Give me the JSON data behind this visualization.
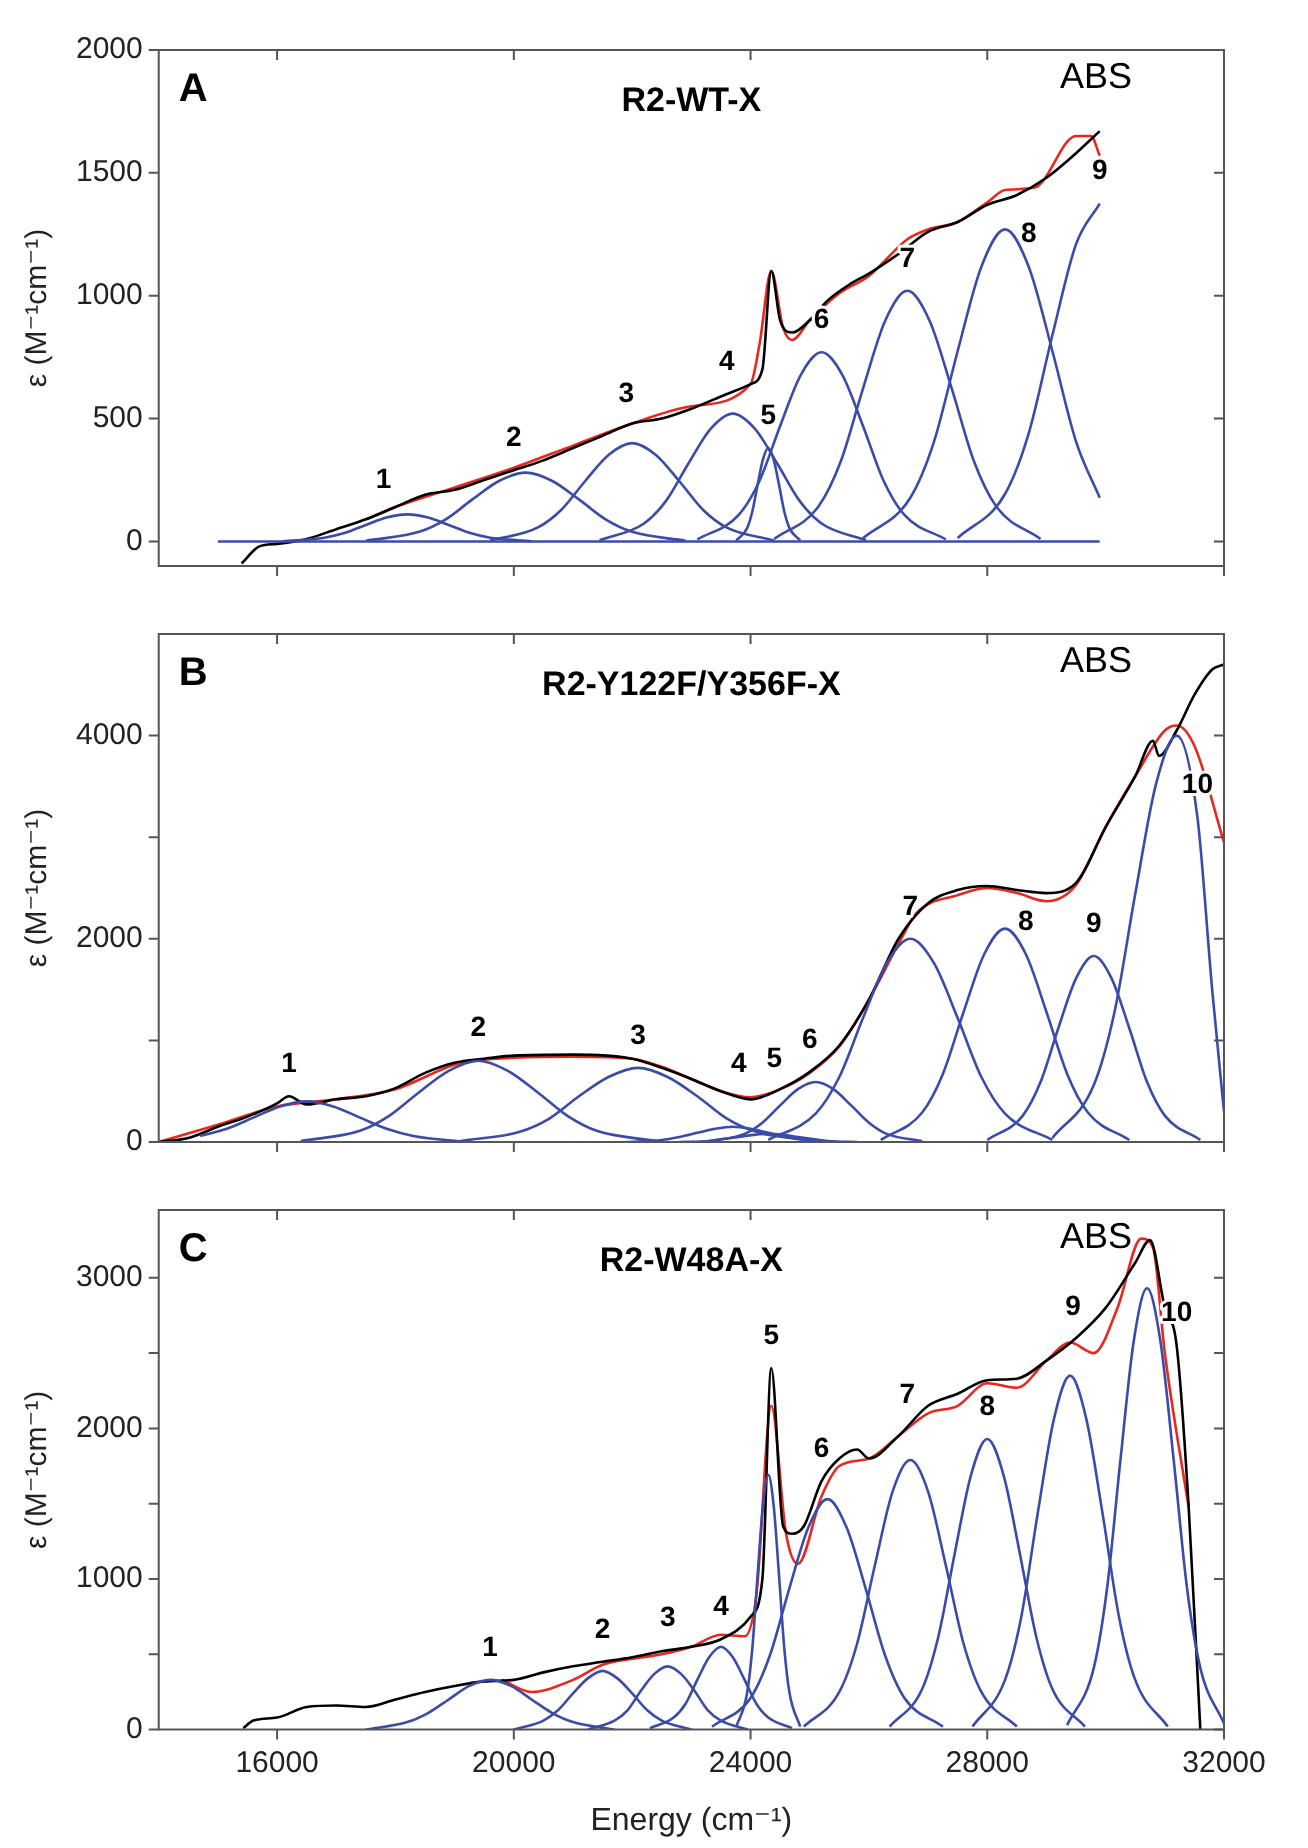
{
  "chart_data": [
    {
      "type": "line",
      "title": "R2-WT-X",
      "ylabel": "ε (M⁻¹cm⁻¹)",
      "annotations": [
        "A",
        "ABS",
        {
          "text": "1",
          "x": 17800,
          "y": 120
        },
        {
          "text": "2",
          "x": 20000,
          "y": 290
        },
        {
          "text": "3",
          "x": 21900,
          "y": 470
        },
        {
          "text": "4",
          "x": 23600,
          "y": 600
        },
        {
          "text": "5",
          "x": 24300,
          "y": 380
        },
        {
          "text": "6",
          "x": 25200,
          "y": 770
        },
        {
          "text": "7",
          "x": 26650,
          "y": 1020
        },
        {
          "text": "8",
          "x": 28700,
          "y": 1118
        },
        {
          "text": "9",
          "x": 29900,
          "y": 1375
        }
      ],
      "xlim": [
        14000,
        32000
      ],
      "xticks": [
        16000,
        20000,
        24000,
        28000,
        32000
      ],
      "ylim": [
        -100,
        2000
      ],
      "yticks": [
        0,
        500,
        1000,
        1500,
        2000
      ],
      "tick_labels": "y",
      "grid": false,
      "legend": false,
      "marker": "none",
      "line_style": "solid",
      "series": [
        {
          "color": "#3a4ba8",
          "x": [
            15000,
            29900
          ],
          "values": [
            0,
            0
          ]
        },
        {
          "color": "#3a4ba8",
          "x": [
            16100,
            16800,
            17150,
            17500,
            17850,
            18200,
            18550,
            18900,
            19250,
            19600,
            20300
          ],
          "values": [
            1,
            15,
            35,
            67,
            97,
            110,
            97,
            67,
            35,
            15,
            1
          ]
        },
        {
          "color": "#3a4ba8",
          "x": [
            17500,
            18400,
            18850,
            19300,
            19750,
            20200,
            20650,
            21100,
            21550,
            22000,
            22900
          ],
          "values": [
            3,
            39,
            90,
            171,
            246,
            280,
            246,
            171,
            90,
            39,
            3
          ]
        },
        {
          "color": "#3a4ba8",
          "x": [
            19600,
            20400,
            20800,
            21200,
            21600,
            22000,
            22400,
            22800,
            23200,
            23600,
            24400
          ],
          "values": [
            4,
            56,
            128,
            244,
            352,
            400,
            352,
            244,
            128,
            56,
            4
          ]
        },
        {
          "color": "#3a4ba8",
          "x": [
            21450,
            22200,
            22575,
            22950,
            23325,
            23700,
            24075,
            24450,
            24825,
            25200,
            25950
          ],
          "values": [
            5,
            73,
            166,
            317,
            458,
            520,
            458,
            317,
            166,
            73,
            5
          ]
        },
        {
          "color": "#3a4ba8",
          "x": [
            23760,
            23940,
            24030,
            24120,
            24210,
            24300,
            24390,
            24480,
            24570,
            24660,
            24840
          ],
          "values": [
            4,
            53,
            122,
            232,
            334,
            380,
            334,
            232,
            122,
            53,
            4
          ]
        },
        {
          "color": "#3a4ba8",
          "x": [
            23100,
            23800,
            24150,
            24500,
            24850,
            25200,
            25550,
            25900,
            26250,
            26600,
            27300
          ],
          "values": [
            8,
            108,
            246,
            470,
            678,
            770,
            678,
            470,
            246,
            108,
            8
          ]
        },
        {
          "color": "#3a4ba8",
          "x": [
            24400,
            25150,
            25525,
            25900,
            26275,
            26650,
            27025,
            27400,
            27775,
            28150,
            28900
          ],
          "values": [
            10,
            143,
            326,
            622,
            898,
            1020,
            898,
            622,
            326,
            143,
            10
          ]
        },
        {
          "color": "#3a4ba8",
          "x": [
            25900,
            26700,
            27100,
            27500,
            27900,
            28300,
            28700,
            29100,
            29500,
            29900
          ],
          "values": [
            13,
            178,
            406,
            775,
            1118,
            1270,
            1118,
            775,
            406,
            178
          ]
        },
        {
          "color": "#3a4ba8",
          "x": [
            27500,
            28300,
            28700,
            29100,
            29500,
            29900
          ],
          "values": [
            14,
            193,
            440,
            839,
            1210,
            1375
          ]
        },
        {
          "color": "#000000",
          "x": [
            15400,
            15700,
            16000,
            16500,
            17000,
            17500,
            18000,
            18500,
            19000,
            19500,
            20000,
            20500,
            21000,
            21500,
            22000,
            22500,
            23000,
            23500,
            24000,
            24200,
            24350,
            24500,
            24700,
            25000,
            25300,
            25700,
            26000,
            26500,
            27000,
            27500,
            28000,
            28500,
            29000,
            29500,
            29900
          ],
          "values": [
            -90,
            -20,
            -10,
            10,
            50,
            90,
            140,
            190,
            210,
            250,
            290,
            330,
            380,
            430,
            480,
            500,
            540,
            590,
            640,
            700,
            1100,
            900,
            850,
            900,
            980,
            1050,
            1090,
            1170,
            1260,
            1300,
            1370,
            1410,
            1480,
            1580,
            1670
          ]
        },
        {
          "color": "#e8281e",
          "x": [
            17500,
            18000,
            19000,
            20000,
            21000,
            22000,
            23000,
            24000,
            24150,
            24350,
            24550,
            24700,
            25000,
            25500,
            26000,
            26650,
            27000,
            27500,
            28000,
            28300,
            28800,
            29500,
            29750,
            29900
          ],
          "values": [
            90,
            140,
            220,
            300,
            390,
            480,
            550,
            640,
            800,
            1100,
            870,
            820,
            900,
            1010,
            1080,
            1230,
            1270,
            1300,
            1380,
            1430,
            1440,
            1650,
            1650,
            1570
          ]
        }
      ]
    },
    {
      "type": "line",
      "title": "R2-Y122F/Y356F-X",
      "ylabel": "ε (M⁻¹cm⁻¹)",
      "annotations": [
        "B",
        "ABS",
        {
          "text": "1",
          "x": 16200,
          "y": 450
        },
        {
          "text": "2",
          "x": 19400,
          "y": 800
        },
        {
          "text": "3",
          "x": 22100,
          "y": 730
        },
        {
          "text": "4",
          "x": 23800,
          "y": 450
        },
        {
          "text": "5",
          "x": 24400,
          "y": 500
        },
        {
          "text": "6",
          "x": 25000,
          "y": 690
        },
        {
          "text": "7",
          "x": 26700,
          "y": 2000
        },
        {
          "text": "8",
          "x": 28650,
          "y": 1850
        },
        {
          "text": "9",
          "x": 29800,
          "y": 1830
        },
        {
          "text": "10",
          "x": 31550,
          "y": 3200
        }
      ],
      "xlim": [
        14000,
        32000
      ],
      "xticks": [
        16000,
        20000,
        24000,
        28000,
        32000
      ],
      "ylim": [
        0,
        5000
      ],
      "yticks": [
        0,
        {
          "value": 1000,
          "label": null
        },
        2000,
        {
          "value": 3000,
          "label": null
        },
        4000
      ],
      "tick_labels": "y",
      "grid": false,
      "legend": false,
      "marker": "none",
      "line_style": "solid",
      "series": [
        {
          "color": "#3a4ba8",
          "x": [
            14700,
            15150,
            15600,
            16050,
            16500,
            16950,
            17400,
            17850,
            18300,
            19200
          ],
          "values": [
            60,
            130,
            240,
            350,
            400,
            350,
            240,
            130,
            60,
            0
          ]
        },
        {
          "color": "#3a4ba8",
          "x": [
            16400,
            17400,
            17900,
            18400,
            18900,
            19400,
            19900,
            20400,
            20900,
            21400,
            22400
          ],
          "values": [
            10,
            110,
            260,
            490,
            700,
            800,
            700,
            490,
            260,
            110,
            10
          ]
        },
        {
          "color": "#3a4ba8",
          "x": [
            19100,
            20100,
            20600,
            21100,
            21600,
            22100,
            22600,
            23100,
            23600,
            24100,
            25100
          ],
          "values": [
            10,
            100,
            230,
            450,
            640,
            730,
            640,
            450,
            230,
            100,
            10
          ]
        },
        {
          "color": "#3a4ba8",
          "x": [
            21900,
            22500,
            22800,
            23100,
            23400,
            23700,
            24000,
            24300,
            24600,
            24900,
            25500
          ],
          "values": [
            0,
            20,
            50,
            90,
            130,
            150,
            130,
            90,
            50,
            20,
            0
          ]
        },
        {
          "color": "#3a4ba8",
          "x": [
            22800,
            23300,
            23550,
            23800,
            24050,
            24300,
            24550,
            24800,
            25050,
            25300,
            25800
          ],
          "values": [
            0,
            10,
            30,
            50,
            70,
            80,
            70,
            50,
            30,
            10,
            0
          ]
        },
        {
          "color": "#3a4ba8",
          "x": [
            23300,
            23900,
            24200,
            24500,
            24800,
            25100,
            25400,
            25700,
            26000,
            26300,
            26900
          ],
          "values": [
            10,
            80,
            190,
            360,
            520,
            590,
            520,
            360,
            190,
            80,
            10
          ]
        },
        {
          "color": "#3a4ba8",
          "x": [
            24300,
            25100,
            25500,
            25900,
            26300,
            26700,
            27100,
            27500,
            27900,
            28300,
            29100
          ],
          "values": [
            20,
            280,
            640,
            1220,
            1760,
            2000,
            1760,
            1220,
            640,
            280,
            20
          ]
        },
        {
          "color": "#3a4ba8",
          "x": [
            26200,
            26900,
            27250,
            27600,
            27950,
            28300,
            28650,
            29000,
            29350,
            29700,
            30400
          ],
          "values": [
            20,
            290,
            670,
            1280,
            1850,
            2100,
            1850,
            1280,
            670,
            290,
            20
          ]
        },
        {
          "color": "#3a4ba8",
          "x": [
            28000,
            28600,
            28900,
            29200,
            29500,
            29800,
            30100,
            30400,
            30700,
            31000,
            31600
          ],
          "values": [
            20,
            260,
            590,
            1120,
            1610,
            1830,
            1610,
            1120,
            590,
            260,
            20
          ]
        },
        {
          "color": "#3a4ba8",
          "x": [
            29100,
            29800,
            30150,
            30500,
            30850,
            31200,
            31550,
            31800,
            32000
          ],
          "values": [
            40,
            560,
            1280,
            2440,
            3520,
            4000,
            3200,
            1500,
            300
          ]
        },
        {
          "color": "#000000",
          "x": [
            14000,
            14500,
            15000,
            15500,
            16000,
            16200,
            16500,
            17000,
            17500,
            18000,
            18500,
            19000,
            19500,
            20000,
            21000,
            22000,
            22500,
            23000,
            23500,
            24000,
            24500,
            25000,
            25500,
            26000,
            26500,
            27000,
            27500,
            28000,
            28500,
            29000,
            29500,
            30000,
            30500,
            30800,
            30900,
            31200,
            31500,
            31800,
            32000
          ],
          "values": [
            0,
            40,
            150,
            250,
            380,
            450,
            370,
            420,
            450,
            530,
            680,
            780,
            820,
            850,
            860,
            820,
            730,
            620,
            500,
            420,
            520,
            690,
            950,
            1400,
            2000,
            2350,
            2480,
            2520,
            2480,
            2450,
            2550,
            3100,
            3600,
            3950,
            3800,
            4050,
            4400,
            4650,
            4700
          ]
        },
        {
          "color": "#e8281e",
          "x": [
            14000,
            15000,
            16000,
            17000,
            18000,
            19000,
            19500,
            20000,
            21000,
            22000,
            22500,
            23000,
            23500,
            24000,
            24500,
            25000,
            25500,
            26000,
            26500,
            26800,
            27500,
            28000,
            28500,
            29000,
            29500,
            30000,
            30500,
            31000,
            31200,
            31500,
            32000
          ],
          "values": [
            0,
            170,
            350,
            420,
            520,
            760,
            810,
            830,
            840,
            820,
            740,
            620,
            500,
            440,
            520,
            680,
            940,
            1400,
            1950,
            2250,
            2430,
            2500,
            2450,
            2370,
            2530,
            3100,
            3600,
            4050,
            4100,
            3900,
            2950
          ]
        }
      ]
    },
    {
      "type": "line",
      "title": "R2-W48A-X",
      "xlabel": "Energy (cm⁻¹)",
      "ylabel": "ε (M⁻¹cm⁻¹)",
      "annotations": [
        "C",
        "ABS",
        {
          "text": "1",
          "x": 19600,
          "y": 330
        },
        {
          "text": "2",
          "x": 21500,
          "y": 450
        },
        {
          "text": "3",
          "x": 22600,
          "y": 525
        },
        {
          "text": "4",
          "x": 23500,
          "y": 600
        },
        {
          "text": "5",
          "x": 24350,
          "y": 2400
        },
        {
          "text": "6",
          "x": 25200,
          "y": 1650
        },
        {
          "text": "7",
          "x": 26650,
          "y": 2010
        },
        {
          "text": "8",
          "x": 28000,
          "y": 1930
        },
        {
          "text": "9",
          "x": 29450,
          "y": 2590
        },
        {
          "text": "10",
          "x": 31200,
          "y": 2550
        }
      ],
      "xlim": [
        14000,
        32000
      ],
      "xticks": [
        16000,
        20000,
        24000,
        28000,
        32000
      ],
      "ylim": [
        0,
        3450
      ],
      "yticks": [
        0,
        {
          "value": 500,
          "label": null
        },
        1000,
        {
          "value": 1500,
          "label": null
        },
        2000,
        {
          "value": 2500,
          "label": null
        },
        3000
      ],
      "grid": false,
      "legend": false,
      "marker": "none",
      "line_style": "solid",
      "series": [
        {
          "color": "#3a4ba8",
          "x": [
            17500,
            18200,
            18550,
            18900,
            19250,
            19600,
            19950,
            20300,
            20650,
            21000,
            21700
          ],
          "values": [
            0,
            50,
            110,
            200,
            290,
            330,
            290,
            200,
            110,
            50,
            0
          ]
        },
        {
          "color": "#3a4ba8",
          "x": [
            20000,
            20500,
            20750,
            21000,
            21250,
            21500,
            21750,
            22000,
            22250,
            22500,
            23000
          ],
          "values": [
            0,
            60,
            130,
            240,
            340,
            390,
            340,
            240,
            130,
            60,
            0
          ]
        },
        {
          "color": "#3a4ba8",
          "x": [
            21250,
            21700,
            21925,
            22150,
            22375,
            22600,
            22825,
            23050,
            23275,
            23500,
            23950
          ],
          "values": [
            0,
            60,
            130,
            260,
            370,
            420,
            370,
            260,
            130,
            60,
            0
          ]
        },
        {
          "color": "#3a4ba8",
          "x": [
            22300,
            22700,
            22900,
            23100,
            23300,
            23500,
            23700,
            23900,
            24100,
            24300,
            24700
          ],
          "values": [
            10,
            80,
            170,
            330,
            480,
            550,
            480,
            330,
            170,
            80,
            10
          ]
        },
        {
          "color": "#3a4ba8",
          "x": [
            23760,
            23940,
            24030,
            24120,
            24210,
            24300,
            24390,
            24480,
            24570,
            24660,
            24840
          ],
          "values": [
            20,
            240,
            540,
            1030,
            1490,
            1690,
            1490,
            1030,
            540,
            240,
            20
          ]
        },
        {
          "color": "#3a4ba8",
          "x": [
            23350,
            24000,
            24325,
            24650,
            24975,
            25300,
            25625,
            25950,
            26275,
            26600,
            27250
          ],
          "values": [
            20,
            210,
            490,
            930,
            1340,
            1530,
            1340,
            930,
            490,
            210,
            20
          ]
        },
        {
          "color": "#3a4ba8",
          "x": [
            24900,
            25500,
            25800,
            26100,
            26400,
            26700,
            27000,
            27300,
            27600,
            27900,
            28500
          ],
          "values": [
            20,
            250,
            570,
            1090,
            1580,
            1790,
            1580,
            1090,
            570,
            250,
            20
          ]
        },
        {
          "color": "#3a4ba8",
          "x": [
            26350,
            26900,
            27175,
            27450,
            27725,
            28000,
            28275,
            28550,
            28825,
            29100,
            29650
          ],
          "values": [
            20,
            270,
            620,
            1170,
            1690,
            1930,
            1690,
            1170,
            620,
            270,
            20
          ]
        },
        {
          "color": "#3a4ba8",
          "x": [
            27750,
            28300,
            28575,
            28850,
            29125,
            29400,
            29675,
            29950,
            30225,
            30500,
            31050
          ],
          "values": [
            20,
            330,
            750,
            1430,
            2060,
            2350,
            2060,
            1430,
            750,
            330,
            20
          ]
        },
        {
          "color": "#3a4ba8",
          "x": [
            29350,
            29800,
            30025,
            30250,
            30475,
            30700,
            30925,
            31150,
            31375,
            31600,
            32000
          ],
          "values": [
            30,
            410,
            940,
            1790,
            2580,
            2930,
            2580,
            1790,
            940,
            410,
            40
          ]
        },
        {
          "color": "#000000",
          "x": [
            15430,
            15600,
            16000,
            16500,
            17000,
            17500,
            18000,
            18500,
            19000,
            19500,
            20000,
            20500,
            21000,
            21500,
            22000,
            22500,
            23000,
            23500,
            24000,
            24200,
            24350,
            24550,
            24700,
            24900,
            25200,
            25500,
            25800,
            26000,
            26500,
            27000,
            27500,
            28000,
            28500,
            29000,
            29500,
            30000,
            30500,
            30750,
            31000,
            31200,
            31400,
            31600
          ],
          "values": [
            10,
            60,
            80,
            150,
            160,
            150,
            200,
            250,
            290,
            320,
            330,
            380,
            420,
            450,
            480,
            520,
            550,
            600,
            750,
            1000,
            2400,
            1350,
            1300,
            1350,
            1650,
            1800,
            1860,
            1800,
            1950,
            2150,
            2230,
            2320,
            2330,
            2450,
            2600,
            2800,
            3100,
            3250,
            2800,
            2550,
            1500,
            0
          ]
        },
        {
          "color": "#e8281e",
          "x": [
            19800,
            20300,
            21000,
            21500,
            22000,
            22500,
            23000,
            23500,
            23900,
            24100,
            24350,
            24600,
            24800,
            25200,
            25500,
            26000,
            26500,
            27000,
            27500,
            28000,
            28500,
            29000,
            29400,
            29800,
            30200,
            30600,
            30800,
            31000,
            31400
          ],
          "values": [
            330,
            250,
            330,
            430,
            470,
            500,
            550,
            630,
            620,
            900,
            2150,
            1300,
            1100,
            1550,
            1750,
            1800,
            1950,
            2100,
            2150,
            2300,
            2270,
            2450,
            2570,
            2500,
            2800,
            3260,
            3200,
            2500,
            1480
          ]
        }
      ]
    }
  ]
}
